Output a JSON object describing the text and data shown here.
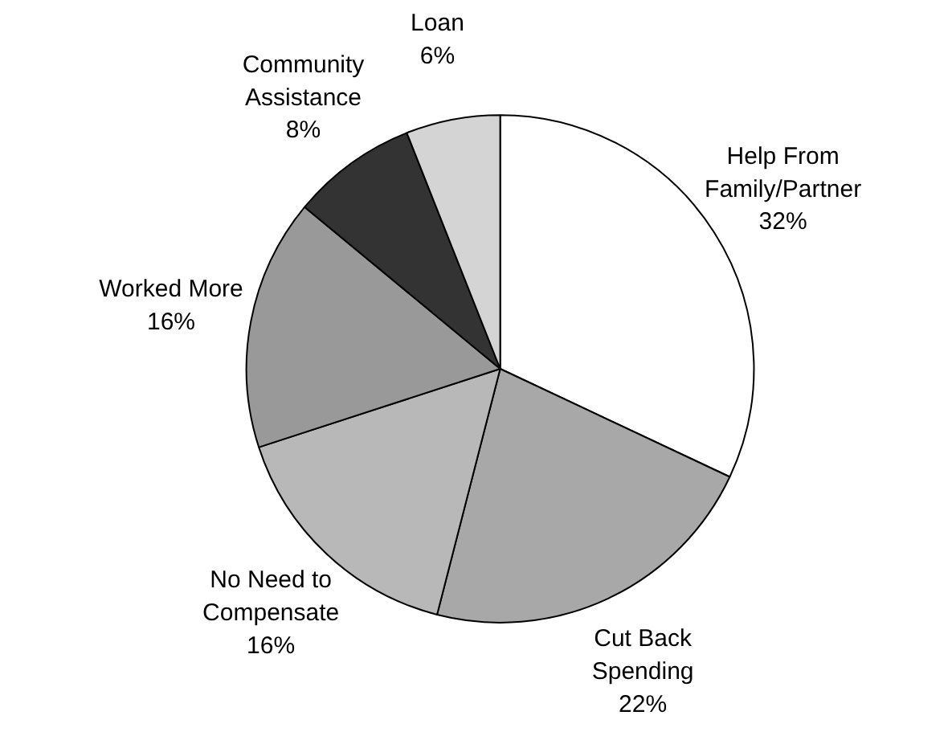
{
  "chart_data": {
    "type": "pie",
    "categories": [
      "Help From Family/Partner",
      "Cut Back Spending",
      "No Need to Compensate",
      "Worked More",
      "Community Assistance",
      "Loan"
    ],
    "values": [
      32,
      22,
      16,
      16,
      8,
      6
    ],
    "value_labels": [
      "32%",
      "22%",
      "16%",
      "16%",
      "8%",
      "6%"
    ],
    "colors": [
      "#ffffff",
      "#a8a8a8",
      "#b8b8b8",
      "#999999",
      "#333333",
      "#d4d4d4"
    ]
  }
}
